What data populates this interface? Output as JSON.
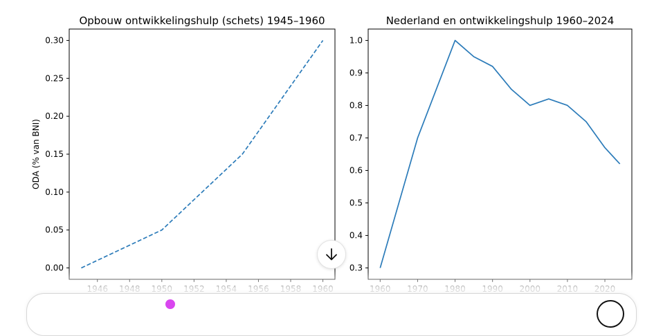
{
  "chart_data": [
    {
      "type": "line",
      "title": "Opbouw ontwikkelingshulp (schets) 1945–1960",
      "xlabel": "",
      "ylabel": "ODA (% van BNI)",
      "xlim": [
        1944.25,
        1960.75
      ],
      "ylim": [
        -0.015,
        0.315
      ],
      "xticks": [
        1946,
        1948,
        1950,
        1952,
        1954,
        1956,
        1958,
        1960
      ],
      "yticks": [
        0.0,
        0.05,
        0.1,
        0.15,
        0.2,
        0.25,
        0.3
      ],
      "ytick_labels": [
        "0.00",
        "0.05",
        "0.10",
        "0.15",
        "0.20",
        "0.25",
        "0.30"
      ],
      "line_style": "dashed",
      "grid": false,
      "series": [
        {
          "x": [
            1945,
            1950,
            1955,
            1960
          ],
          "values": [
            0.0,
            0.05,
            0.15,
            0.3
          ],
          "color": "#2b7bb9"
        }
      ]
    },
    {
      "type": "line",
      "title": "Nederland en ontwikkelingshulp 1960–2024",
      "xlabel": "",
      "ylabel": "",
      "xlim": [
        1956.8,
        2027.2
      ],
      "ylim": [
        0.265,
        1.035
      ],
      "xticks": [
        1960,
        1970,
        1980,
        1990,
        2000,
        2010,
        2020
      ],
      "yticks": [
        0.3,
        0.4,
        0.5,
        0.6,
        0.7,
        0.8,
        0.9,
        1.0
      ],
      "ytick_labels": [
        "0.3",
        "0.4",
        "0.5",
        "0.6",
        "0.7",
        "0.8",
        "0.9",
        "1.0"
      ],
      "line_style": "solid",
      "grid": false,
      "series": [
        {
          "x": [
            1960,
            1970,
            1980,
            1985,
            1990,
            1995,
            2000,
            2005,
            2010,
            2015,
            2020,
            2024
          ],
          "values": [
            0.3,
            0.7,
            1.0,
            0.95,
            0.92,
            0.85,
            0.8,
            0.82,
            0.8,
            0.75,
            0.67,
            0.62
          ],
          "color": "#2b7bb9"
        }
      ]
    }
  ],
  "ui": {
    "scroll_down_icon": "arrow-down-icon"
  }
}
